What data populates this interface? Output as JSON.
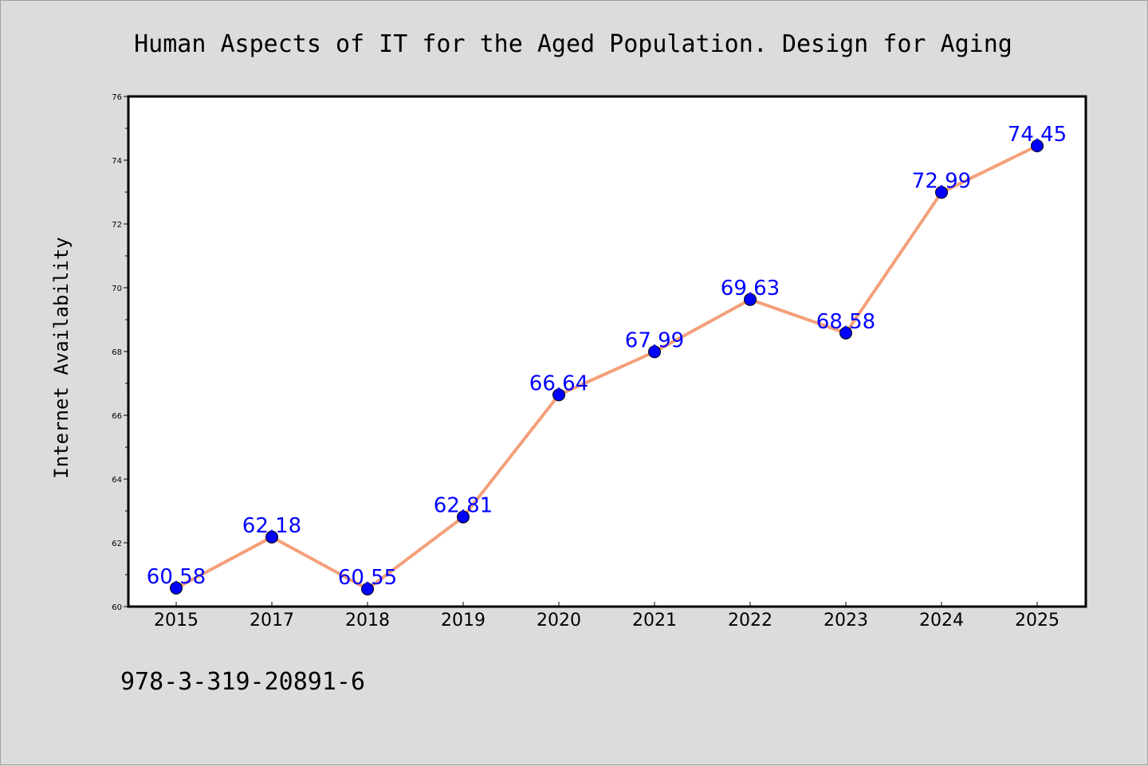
{
  "chart_data": {
    "type": "line",
    "title": "Human Aspects of IT for the Aged Population. Design for Aging",
    "xlabel": "",
    "ylabel": "Internet Availability",
    "categories": [
      "2015",
      "2017",
      "2018",
      "2019",
      "2020",
      "2021",
      "2022",
      "2023",
      "2024",
      "2025"
    ],
    "series": [
      {
        "values": [
          60.58,
          62.18,
          60.55,
          62.81,
          66.64,
          67.99,
          69.63,
          68.58,
          72.99,
          74.45
        ],
        "labels": [
          "60.58",
          "62.18",
          "60.55",
          "62.81",
          "66.64",
          "67.99",
          "69.63",
          "68.58",
          "72.99",
          "74.45"
        ],
        "line_color": "#f4a07a",
        "marker_color": "#0000ff"
      }
    ],
    "ylim": [
      60,
      76
    ],
    "yticks": [
      "60",
      "62",
      "64",
      "66",
      "68",
      "70",
      "72",
      "74",
      "76"
    ],
    "grid": false,
    "legend": "none",
    "footer": "978-3-319-20891-6",
    "background_color": "#dcdcdc",
    "plot_background": "#ffffff"
  }
}
